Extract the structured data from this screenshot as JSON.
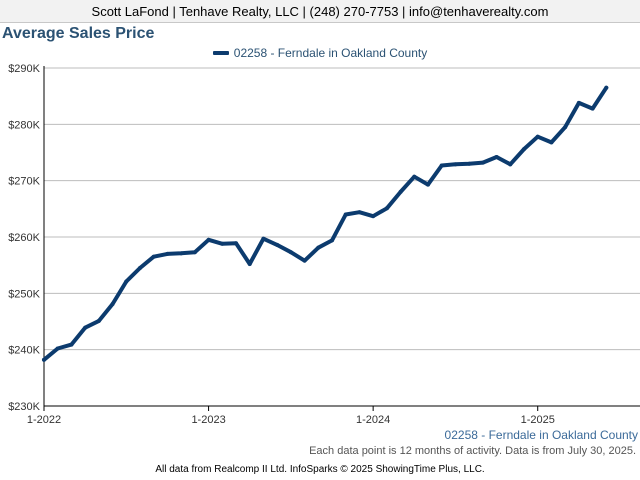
{
  "header": {
    "text": "Scott LaFond | Tenhave Realty, LLC | (248) 270-7753 | info@tenhaverealty.com"
  },
  "footer": {
    "series_label": "02258 - Ferndale in Oakland County",
    "note": "Each data point is 12 months of activity. Data is from July 30, 2025.",
    "source": "All data from Realcomp II Ltd. InfoSparks © 2025 ShowingTime Plus, LLC."
  },
  "colors": {
    "series": "#0c3b6e",
    "title": "#2b5273",
    "grid": "#bdbdbd",
    "axis": "#000000"
  },
  "chart_data": {
    "type": "line",
    "title": "Average Sales Price",
    "xlabel": "",
    "ylabel": "",
    "legend_position": "top-center",
    "grid": true,
    "ylim": [
      230000,
      290000
    ],
    "yticks": [
      230000,
      240000,
      250000,
      260000,
      270000,
      280000,
      290000
    ],
    "ytick_labels": [
      "$230K",
      "$240K",
      "$250K",
      "$260K",
      "$270K",
      "$280K",
      "$290K"
    ],
    "xticks": [
      "2022-01",
      "2023-01",
      "2024-01",
      "2025-01"
    ],
    "xtick_labels": [
      "1-2022",
      "1-2023",
      "1-2024",
      "1-2025"
    ],
    "xlim": [
      "2022-01",
      "2025-07"
    ],
    "series": [
      {
        "name": "02258 - Ferndale in Oakland County",
        "x": [
          "2022-01",
          "2022-02",
          "2022-03",
          "2022-04",
          "2022-05",
          "2022-06",
          "2022-07",
          "2022-08",
          "2022-09",
          "2022-10",
          "2022-11",
          "2022-12",
          "2023-01",
          "2023-02",
          "2023-03",
          "2023-04",
          "2023-05",
          "2023-06",
          "2023-07",
          "2023-08",
          "2023-09",
          "2023-10",
          "2023-11",
          "2023-12",
          "2024-01",
          "2024-02",
          "2024-03",
          "2024-04",
          "2024-05",
          "2024-06",
          "2024-07",
          "2024-08",
          "2024-09",
          "2024-10",
          "2024-11",
          "2024-12",
          "2025-01",
          "2025-02",
          "2025-03",
          "2025-04",
          "2025-05",
          "2025-06"
        ],
        "values": [
          238200,
          240200,
          240900,
          243900,
          245100,
          248100,
          252100,
          254500,
          256500,
          257000,
          257100,
          257300,
          259500,
          258800,
          258900,
          255200,
          259700,
          258600,
          257300,
          255800,
          258100,
          259400,
          264000,
          264400,
          263700,
          265100,
          268000,
          270700,
          269300,
          272700,
          272900,
          273000,
          273200,
          274200,
          272900,
          275600,
          277800,
          276800,
          279500,
          283800,
          282800,
          286500
        ]
      }
    ]
  }
}
